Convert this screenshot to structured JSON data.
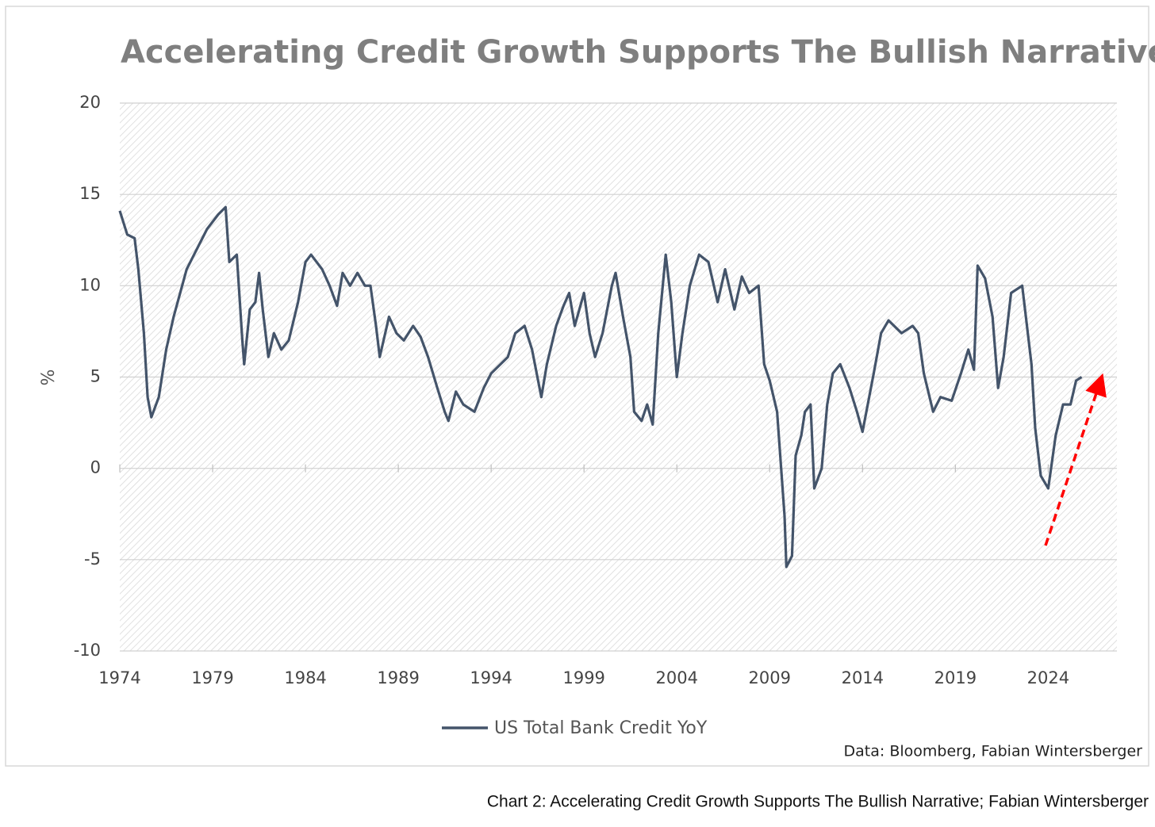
{
  "chart_data": {
    "type": "line",
    "title": "Accelerating Credit Growth Supports The Bullish Narrative",
    "y_label": "%",
    "source": "Data: Bloomberg, Fabian Wintersberger",
    "caption": "Chart 2: Accelerating Credit Growth Supports The Bullish Narrative; Fabian Wintersberger",
    "xlim": [
      1974,
      2027.7
    ],
    "xticks": [
      1974,
      1979,
      1984,
      1989,
      1994,
      1999,
      2004,
      2009,
      2014,
      2019,
      2024
    ],
    "ylim": [
      -10,
      20
    ],
    "yticks": [
      -10,
      -5,
      0,
      5,
      10,
      15,
      20
    ],
    "grid": true,
    "series": [
      {
        "name": "US Total Bank Credit YoY",
        "color": "#44546a",
        "x": [
          1974.0,
          1974.4,
          1974.8,
          1975.0,
          1975.3,
          1975.5,
          1975.7,
          1976.1,
          1976.5,
          1976.9,
          1977.6,
          1978.0,
          1978.7,
          1979.3,
          1979.7,
          1979.9,
          1980.3,
          1980.6,
          1980.7,
          1981.0,
          1981.3,
          1981.5,
          1981.7,
          1982.0,
          1982.3,
          1982.7,
          1983.1,
          1983.6,
          1984.0,
          1984.3,
          1984.9,
          1985.3,
          1985.7,
          1986.0,
          1986.4,
          1986.8,
          1987.2,
          1987.5,
          1987.8,
          1988.0,
          1988.5,
          1988.9,
          1989.3,
          1989.8,
          1990.2,
          1990.6,
          1991.1,
          1991.5,
          1991.7,
          1992.1,
          1992.5,
          1993.1,
          1993.6,
          1994.0,
          1994.5,
          1994.9,
          1995.3,
          1995.8,
          1996.2,
          1996.7,
          1997.0,
          1997.5,
          1997.9,
          1998.2,
          1998.5,
          1999.0,
          1999.3,
          1999.6,
          2000.0,
          2000.5,
          2000.7,
          2001.1,
          2001.5,
          2001.7,
          2002.1,
          2002.4,
          2002.7,
          2003.0,
          2003.4,
          2003.7,
          2004.0,
          2004.3,
          2004.7,
          2005.2,
          2005.7,
          2006.2,
          2006.6,
          2007.1,
          2007.5,
          2007.9,
          2008.4,
          2008.7,
          2009.0,
          2009.4,
          2009.8,
          2009.9,
          2010.2,
          2010.4,
          2010.7,
          2010.9,
          2011.2,
          2011.4,
          2011.8,
          2012.1,
          2012.4,
          2012.8,
          2013.3,
          2013.7,
          2014.0,
          2014.6,
          2015.0,
          2015.4,
          2016.1,
          2016.7,
          2017.0,
          2017.3,
          2017.8,
          2018.2,
          2018.8,
          2019.3,
          2019.7,
          2020.0,
          2020.2,
          2020.6,
          2021.0,
          2021.3,
          2021.6,
          2022.0,
          2022.6,
          2023.1,
          2023.3,
          2023.6,
          2024.0,
          2024.4,
          2024.8,
          2025.2,
          2025.5,
          2025.8
        ],
        "values": [
          14.1,
          12.8,
          12.6,
          10.9,
          7.4,
          3.9,
          2.8,
          3.9,
          6.5,
          8.3,
          10.9,
          11.7,
          13.1,
          13.9,
          14.3,
          11.3,
          11.7,
          7.0,
          5.7,
          8.7,
          9.1,
          10.7,
          8.7,
          6.1,
          7.4,
          6.5,
          7.0,
          9.1,
          11.3,
          11.7,
          10.9,
          10.0,
          8.9,
          10.7,
          10.0,
          10.7,
          10.0,
          10.0,
          7.8,
          6.1,
          8.3,
          7.4,
          7.0,
          7.8,
          7.2,
          6.1,
          4.4,
          3.1,
          2.6,
          4.2,
          3.5,
          3.1,
          4.4,
          5.2,
          5.7,
          6.1,
          7.4,
          7.8,
          6.5,
          3.9,
          5.7,
          7.8,
          8.9,
          9.6,
          7.8,
          9.6,
          7.4,
          6.1,
          7.4,
          10.0,
          10.7,
          8.3,
          6.1,
          3.1,
          2.6,
          3.5,
          2.4,
          7.4,
          11.7,
          9.1,
          5.0,
          7.4,
          10.0,
          11.7,
          11.3,
          9.1,
          10.9,
          8.7,
          10.5,
          9.6,
          10.0,
          5.7,
          4.8,
          3.1,
          -2.6,
          -5.4,
          -4.8,
          0.7,
          1.8,
          3.1,
          3.5,
          -1.1,
          0.0,
          3.5,
          5.2,
          5.7,
          4.4,
          3.1,
          2.0,
          5.2,
          7.4,
          8.1,
          7.4,
          7.8,
          7.4,
          5.2,
          3.1,
          3.9,
          3.7,
          5.2,
          6.5,
          5.4,
          11.1,
          10.4,
          8.3,
          4.4,
          6.1,
          9.6,
          10.0,
          5.7,
          2.2,
          -0.4,
          -1.1,
          1.8,
          3.5,
          3.5,
          4.8,
          5.0
        ]
      }
    ]
  }
}
